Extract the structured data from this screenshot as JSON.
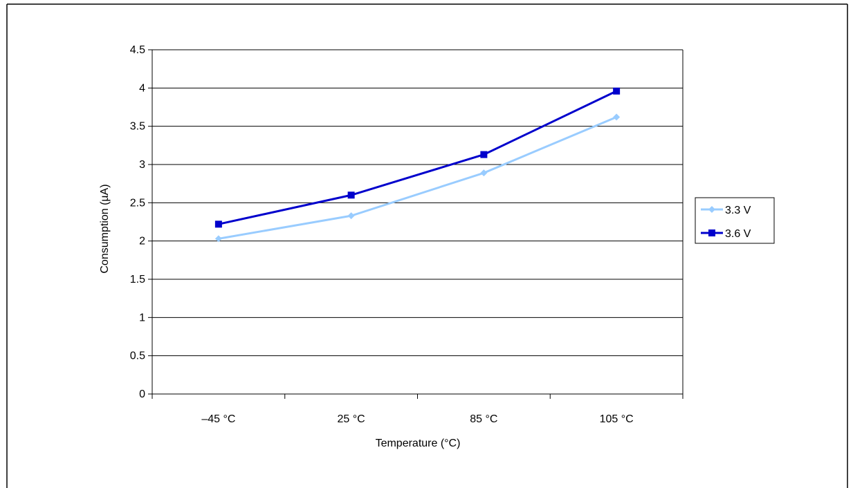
{
  "chart_data": {
    "type": "line",
    "title": "",
    "xlabel": "Temperature (°C)",
    "ylabel": "Consumption (µA)",
    "categories": [
      "–45 °C",
      "25 °C",
      "85 °C",
      "105 °C"
    ],
    "ylim": [
      0,
      4.5
    ],
    "yticks": [
      "0",
      "0.5",
      "1",
      "1.5",
      "2",
      "2.5",
      "3",
      "3.5",
      "4",
      "4.5"
    ],
    "ytick_values": [
      0,
      0.5,
      1,
      1.5,
      2,
      2.5,
      3,
      3.5,
      4,
      4.5
    ],
    "grid": true,
    "legend_position": "right",
    "series": [
      {
        "name": "3.3 V",
        "values": [
          2.03,
          2.33,
          2.89,
          3.62
        ],
        "color": "#99ccff",
        "marker": "diamond"
      },
      {
        "name": "3.6 V",
        "values": [
          2.22,
          2.6,
          3.13,
          3.96
        ],
        "color": "#0000cc",
        "marker": "square"
      }
    ]
  }
}
